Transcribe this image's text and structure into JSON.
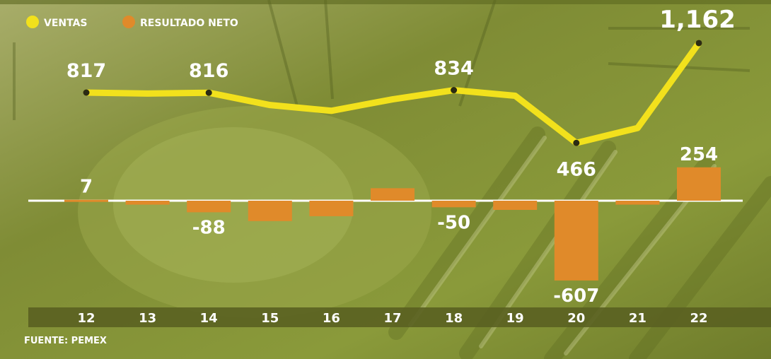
{
  "colors": {
    "ventas": "#f2e11c",
    "resultado": "#e08a2a",
    "background": "#7d8a32",
    "text": "#ffffff"
  },
  "legend": {
    "ventas_label": "VENTAS",
    "resultado_label": "RESULTADO NETO"
  },
  "source": "FUENTE: PEMEX",
  "chart_data": {
    "type": "line+bar",
    "categories": [
      "12",
      "13",
      "14",
      "15",
      "16",
      "17",
      "18",
      "19",
      "20",
      "21",
      "22"
    ],
    "series": [
      {
        "name": "VENTAS",
        "type": "line",
        "values": [
          817,
          810,
          816,
          730,
          690,
          770,
          834,
          795,
          466,
          570,
          1162
        ],
        "labels": [
          "817",
          "",
          "816",
          "",
          "",
          "",
          "834",
          "",
          "466",
          "",
          "1,162"
        ]
      },
      {
        "name": "RESULTADO NETO",
        "type": "bar",
        "values": [
          7,
          -30,
          -88,
          -155,
          -118,
          95,
          -50,
          -70,
          -607,
          -30,
          254
        ],
        "labels": [
          "7",
          "",
          "-88",
          "",
          "",
          "",
          "-50",
          "",
          "-607",
          "",
          "254"
        ]
      }
    ],
    "legend_position": "top-left"
  }
}
